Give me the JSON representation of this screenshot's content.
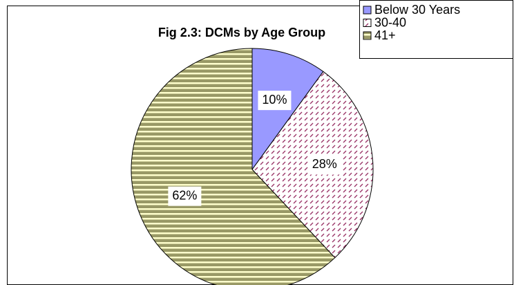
{
  "chart_data": {
    "type": "pie",
    "title": "Fig 2.3: DCMs by Age Group",
    "categories": [
      "Below 30 Years",
      "30-40",
      "41+"
    ],
    "values": [
      10,
      28,
      62
    ],
    "value_labels": [
      "10%",
      "28%",
      "62%"
    ],
    "colors": [
      "#9999ff",
      "#993366",
      "#999966"
    ],
    "patterns": [
      "solid",
      "dashes",
      "stripes"
    ],
    "legend": "top-right"
  }
}
